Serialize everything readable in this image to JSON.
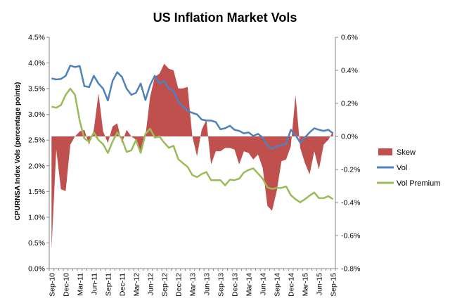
{
  "chart_data": {
    "type": "area+line",
    "title": "US Inflation Market Vols",
    "xlabel": "",
    "ylabel": "CPURNSA Index Vols (percentage points)",
    "ylabel_right": "",
    "ylim": [
      0,
      4.5
    ],
    "ylim_right": [
      -0.8,
      0.6
    ],
    "yticks": [
      "0.0%",
      "0.5%",
      "1.0%",
      "1.5%",
      "2.0%",
      "2.5%",
      "3.0%",
      "3.5%",
      "4.0%",
      "4.5%"
    ],
    "yticks_right": [
      "-0.8%",
      "-0.6%",
      "-0.4%",
      "-0.2%",
      "0.0%",
      "0.2%",
      "0.4%",
      "0.6%"
    ],
    "xtick_labels": [
      "Sep-10",
      "Dec-10",
      "Mar-11",
      "Jun-11",
      "Sep-11",
      "Dec-11",
      "Mar-12",
      "Jun-12",
      "Sep-12",
      "Dec-12",
      "Mar-13",
      "Jun-13",
      "Sep-13",
      "Dec-13",
      "Mar-14",
      "Jun-14",
      "Sep-14",
      "Dec-14",
      "Mar-15",
      "Jun-15",
      "Sep-15"
    ],
    "legend_position": "right",
    "grid": false,
    "series": [
      {
        "name": "Skew",
        "axis": "right",
        "style": "area",
        "color": "#c0504d",
        "values": [
          -0.68,
          -0.08,
          -0.32,
          -0.33,
          -0.05,
          0.0,
          0.03,
          0.04,
          -0.05,
          0.04,
          0.26,
          0.03,
          -0.04,
          0.06,
          0.08,
          -0.04,
          0.04,
          0.0,
          -0.02,
          -0.1,
          0.0,
          0.24,
          0.36,
          0.38,
          0.44,
          0.41,
          0.4,
          0.29,
          0.29,
          0.3,
          0.0,
          -0.12,
          0.04,
          0.1,
          -0.17,
          -0.09,
          -0.09,
          -0.07,
          -0.07,
          -0.08,
          -0.17,
          -0.09,
          -0.1,
          -0.14,
          -0.11,
          -0.19,
          -0.42,
          -0.45,
          -0.33,
          -0.15,
          -0.14,
          -0.06,
          0.25,
          -0.07,
          -0.16,
          -0.23,
          -0.09,
          -0.2,
          -0.05,
          -0.02,
          0.03
        ]
      },
      {
        "name": "Vol",
        "axis": "left",
        "style": "line",
        "color": "#4f81bd",
        "values": [
          3.7,
          3.68,
          3.69,
          3.75,
          3.95,
          3.92,
          3.94,
          3.55,
          3.53,
          3.75,
          3.6,
          3.5,
          3.27,
          3.65,
          3.82,
          3.73,
          3.5,
          3.38,
          3.42,
          3.6,
          3.28,
          3.57,
          3.75,
          3.6,
          3.65,
          3.5,
          3.45,
          3.25,
          3.15,
          3.07,
          3.03,
          3.0,
          2.9,
          2.88,
          2.88,
          2.85,
          2.71,
          2.73,
          2.78,
          2.7,
          2.68,
          2.63,
          2.65,
          2.58,
          2.62,
          2.55,
          2.4,
          2.33,
          2.38,
          2.4,
          2.43,
          2.7,
          2.6,
          2.45,
          2.55,
          2.65,
          2.73,
          2.7,
          2.68,
          2.7,
          2.63
        ]
      },
      {
        "name": "Vol Premium",
        "axis": "left",
        "style": "line",
        "color": "#9bbb59",
        "values": [
          3.15,
          3.13,
          3.18,
          3.38,
          3.5,
          3.38,
          2.87,
          2.53,
          2.47,
          2.65,
          2.5,
          2.42,
          2.25,
          2.47,
          2.65,
          2.52,
          2.27,
          2.3,
          2.5,
          2.25,
          2.62,
          2.72,
          2.55,
          2.57,
          2.45,
          2.35,
          2.39,
          2.13,
          2.05,
          1.98,
          1.82,
          1.78,
          1.84,
          1.88,
          1.72,
          1.72,
          1.72,
          1.62,
          1.73,
          1.72,
          1.75,
          1.87,
          1.92,
          1.95,
          1.85,
          1.75,
          1.58,
          1.55,
          1.57,
          1.57,
          1.6,
          1.43,
          1.35,
          1.29,
          1.35,
          1.42,
          1.48,
          1.37,
          1.37,
          1.41,
          1.35
        ]
      }
    ]
  }
}
